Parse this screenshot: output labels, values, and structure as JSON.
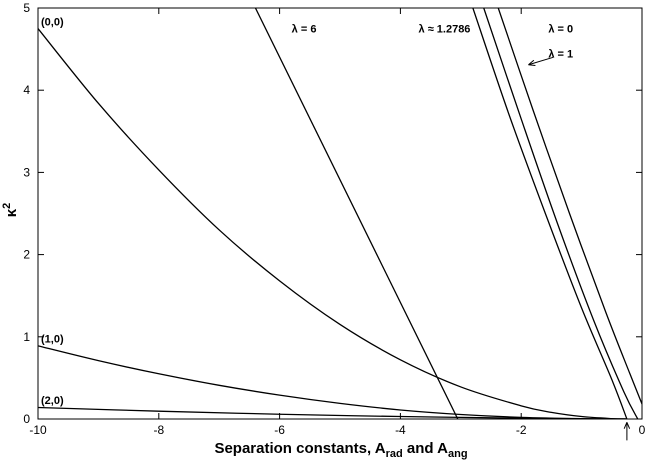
{
  "chart_data": {
    "type": "line",
    "title": "",
    "xlabel": {
      "main": "Separation constants, A",
      "sub1": "rad",
      "mid": " and A",
      "sub2": "ang"
    },
    "ylabel": {
      "main": "κ",
      "sup": "2"
    },
    "xlim": [
      -10,
      0
    ],
    "ylim": [
      0,
      5
    ],
    "xticks": [
      -10,
      -8,
      -6,
      -4,
      -2,
      0
    ],
    "yticks": [
      0,
      1,
      2,
      3,
      4,
      5
    ],
    "xtick_labels": [
      "-10",
      "-8",
      "-6",
      "-4",
      "-2",
      "0"
    ],
    "ytick_labels": [
      "0",
      "1",
      "2",
      "3",
      "4",
      "5"
    ],
    "grid": false,
    "legend": "none",
    "series": [
      {
        "label": "(0,0)",
        "x": [
          -10,
          -9,
          -8,
          -7,
          -6,
          -5,
          -4,
          -3,
          -2,
          -1.5,
          -1,
          -0.5,
          -0.25
        ],
        "y": [
          4.75,
          3.84,
          3.03,
          2.3,
          1.68,
          1.15,
          0.72,
          0.39,
          0.16,
          0.08,
          0.03,
          0.005,
          0
        ]
      },
      {
        "label": "(1,0)",
        "x": [
          -10,
          -9,
          -8,
          -7,
          -6,
          -5,
          -4,
          -3,
          -2,
          -1,
          -0.25
        ],
        "y": [
          0.89,
          0.71,
          0.55,
          0.41,
          0.29,
          0.19,
          0.11,
          0.055,
          0.02,
          0.004,
          0
        ]
      },
      {
        "label": "(2,0)",
        "x": [
          -10,
          -8,
          -6,
          -4,
          -2,
          -0.25
        ],
        "y": [
          0.14,
          0.095,
          0.058,
          0.03,
          0.01,
          0
        ]
      },
      {
        "label": "λ = 6",
        "x": [
          -6.4,
          -3.05
        ],
        "y": [
          5,
          0
        ]
      },
      {
        "label": "λ ≈ 1.2786",
        "x": [
          -2.8,
          -2.2,
          -1.6,
          -1.0,
          -0.5,
          -0.25
        ],
        "y": [
          5,
          3.7,
          2.5,
          1.35,
          0.48,
          0
        ]
      },
      {
        "label": "λ = 1",
        "x": [
          -2.62,
          -2.0,
          -1.4,
          -0.8,
          -0.3,
          -0.07
        ],
        "y": [
          5,
          3.65,
          2.38,
          1.2,
          0.33,
          0
        ]
      },
      {
        "label": "λ = 0",
        "x": [
          -2.38,
          -1.8,
          -1.2,
          -0.6,
          -0.2,
          0.1
        ],
        "y": [
          5,
          3.75,
          2.5,
          1.3,
          0.55,
          0
        ]
      }
    ],
    "annotations": [
      {
        "text": "(0,0)",
        "x": -9.95,
        "y": 4.79
      },
      {
        "text": "(1,0)",
        "x": -9.95,
        "y": 0.93
      },
      {
        "text": "(2,0)",
        "x": -9.95,
        "y": 0.18
      },
      {
        "text": "λ = 6",
        "x": -5.8,
        "y": 4.7
      },
      {
        "text": "λ ≈ 1.2786",
        "x": -3.7,
        "y": 4.7
      },
      {
        "text": "λ = 0",
        "x": -1.55,
        "y": 4.7
      },
      {
        "text": "λ = 1",
        "x": -1.55,
        "y": 4.4
      }
    ],
    "arrows": [
      {
        "from": [
          -1.47,
          4.4
        ],
        "to": [
          -1.88,
          4.31
        ]
      },
      {
        "from": [
          -0.25,
          -0.26
        ],
        "to": [
          -0.25,
          -0.04
        ]
      }
    ]
  }
}
